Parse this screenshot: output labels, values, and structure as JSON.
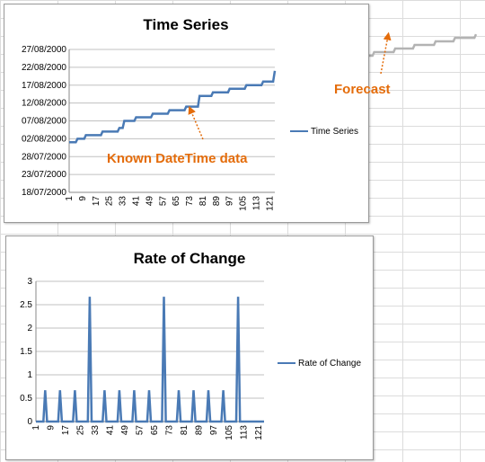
{
  "colors": {
    "series": "#4a7ab5",
    "forecast": "#b3b3b3",
    "annotation": "#e46c0a",
    "gridline": "#c0c0c0"
  },
  "annotations": {
    "forecast": "Forecast",
    "known": "Known DateTime data"
  },
  "chart_data": [
    {
      "type": "line",
      "title": "Time Series",
      "xlabel": "",
      "ylabel": "",
      "x_ticks": [
        "1",
        "9",
        "17",
        "25",
        "33",
        "41",
        "49",
        "57",
        "65",
        "73",
        "81",
        "89",
        "97",
        "105",
        "113",
        "121"
      ],
      "y_ticks": [
        "18/07/2000",
        "23/07/2000",
        "28/07/2000",
        "02/08/2000",
        "07/08/2000",
        "12/08/2000",
        "17/08/2000",
        "22/08/2000",
        "27/08/2000"
      ],
      "ylim": [
        "18/07/2000",
        "27/08/2000"
      ],
      "xlim": [
        1,
        124
      ],
      "grid": true,
      "legend": "right",
      "series": [
        {
          "name": "Time Series",
          "points": [
            [
              1,
              "01/08/2000"
            ],
            [
              5,
              "01/08/2000"
            ],
            [
              6,
              "02/08/2000"
            ],
            [
              10,
              "02/08/2000"
            ],
            [
              11,
              "03/08/2000"
            ],
            [
              20,
              "03/08/2000"
            ],
            [
              21,
              "04/08/2000"
            ],
            [
              30,
              "04/08/2000"
            ],
            [
              31,
              "05/08/2000"
            ],
            [
              33,
              "05/08/2000"
            ],
            [
              34,
              "07/08/2000"
            ],
            [
              40,
              "07/08/2000"
            ],
            [
              41,
              "08/08/2000"
            ],
            [
              50,
              "08/08/2000"
            ],
            [
              51,
              "09/08/2000"
            ],
            [
              60,
              "09/08/2000"
            ],
            [
              61,
              "10/08/2000"
            ],
            [
              70,
              "10/08/2000"
            ],
            [
              71,
              "11/08/2000"
            ],
            [
              78,
              "11/08/2000"
            ],
            [
              79,
              "14/08/2000"
            ],
            [
              86,
              "14/08/2000"
            ],
            [
              87,
              "15/08/2000"
            ],
            [
              96,
              "15/08/2000"
            ],
            [
              97,
              "16/08/2000"
            ],
            [
              106,
              "16/08/2000"
            ],
            [
              107,
              "17/08/2000"
            ],
            [
              116,
              "17/08/2000"
            ],
            [
              117,
              "18/08/2000"
            ],
            [
              123,
              "18/08/2000"
            ],
            [
              124,
              "21/08/2000"
            ]
          ]
        }
      ],
      "forecast_series": [
        [
          0,
          "21/08/2000"
        ],
        [
          10,
          "21/08/2000"
        ],
        [
          11,
          "22/08/2000"
        ],
        [
          22,
          "22/08/2000"
        ],
        [
          23,
          "23/08/2000"
        ],
        [
          35,
          "23/08/2000"
        ],
        [
          36,
          "24/08/2000"
        ],
        [
          48,
          "24/08/2000"
        ],
        [
          49,
          "25/08/2000"
        ],
        [
          61,
          "25/08/2000"
        ],
        [
          62,
          "26/08/2000"
        ],
        [
          74,
          "26/08/2000"
        ],
        [
          75,
          "27/08/2000"
        ],
        [
          86,
          "27/08/2000"
        ],
        [
          87,
          "28/08/2000"
        ],
        [
          99,
          "28/08/2000"
        ],
        [
          100,
          "29/08/2000"
        ],
        [
          111,
          "29/08/2000"
        ],
        [
          112,
          "30/08/2000"
        ],
        [
          124,
          "30/08/2000"
        ],
        [
          125,
          "31/08/2000"
        ]
      ]
    },
    {
      "type": "line",
      "title": "Rate of Change",
      "xlabel": "",
      "ylabel": "",
      "x_ticks": [
        "1",
        "9",
        "17",
        "25",
        "33",
        "41",
        "49",
        "57",
        "65",
        "73",
        "81",
        "89",
        "97",
        "105",
        "113",
        "121"
      ],
      "y_ticks": [
        "0",
        "0.5",
        "1",
        "1.5",
        "2",
        "2.5",
        "3"
      ],
      "ylim": [
        0,
        3
      ],
      "xlim": [
        1,
        124
      ],
      "grid": true,
      "legend": "right",
      "series": [
        {
          "name": "Rate of Change",
          "spikes": [
            {
              "x": 6,
              "y": 0.67
            },
            {
              "x": 14,
              "y": 0.67
            },
            {
              "x": 22,
              "y": 0.67
            },
            {
              "x": 30,
              "y": 2.67
            },
            {
              "x": 38,
              "y": 0.67
            },
            {
              "x": 46,
              "y": 0.67
            },
            {
              "x": 54,
              "y": 0.67
            },
            {
              "x": 62,
              "y": 0.67
            },
            {
              "x": 70,
              "y": 2.67
            },
            {
              "x": 78,
              "y": 0.67
            },
            {
              "x": 86,
              "y": 0.67
            },
            {
              "x": 94,
              "y": 0.67
            },
            {
              "x": 102,
              "y": 0.67
            },
            {
              "x": 110,
              "y": 2.67
            }
          ]
        }
      ]
    }
  ]
}
